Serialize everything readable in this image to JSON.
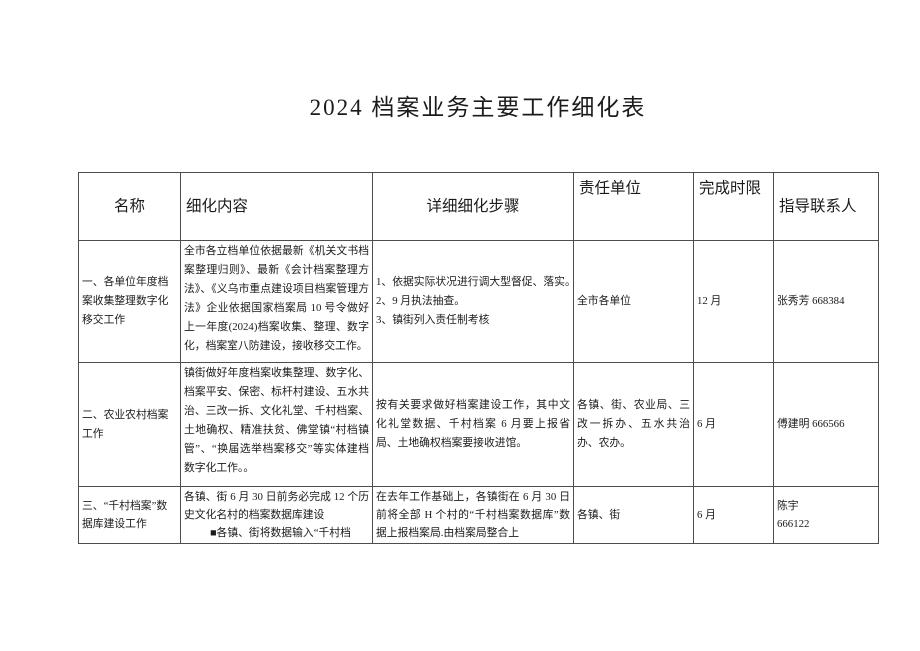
{
  "page": {
    "title": "2024 档案业务主要工作细化表"
  },
  "table": {
    "headers": [
      "名称",
      "细化内容",
      "详细细化步骤",
      "责任单位",
      "完成时限",
      "指导联系人"
    ],
    "rows": [
      {
        "name": "一、各单位年度档案收集整理数字化移交工作",
        "content": "全市各立档单位依据最新《机关文书档案整理归则》、最新《会计档案整理方法》、《义乌市重点建设项目档案管理方法》企业依据国家档案局 10 号令做好上一年度(2024)档案收集、整理、数字化，档案室八防建设，接收移交工作。",
        "steps": [
          "1、依据实际状况进行调大型督促、落实。",
          "2、9 月执法抽查。",
          "3、镇街列入责任制考核"
        ],
        "unit": "全市各单位",
        "deadline": "12 月",
        "contact": "张秀芳 668384"
      },
      {
        "name": "二、农业农村档案工作",
        "content": "镇街做好年度档案收集整理、数字化、档案平安、保密、标杆村建设、五水共治、三改一拆、文化礼堂、千村档案、土地确权、精准扶贫、佛堂镇“村档镇管”、“换届选举档案移交”等实体建档数字化工作。。",
        "steps": [
          "按有关要求做好档案建设工作，其中文化礼堂数据、千村档案 6 月要上报省局、土地确权档案要接收进馆。"
        ],
        "unit": "各镇、街、农业局、三改一拆办、五水共治办、农办。",
        "deadline": "6 月",
        "contact": "傅建明 666566"
      },
      {
        "name": "三、“千村档案”数据库建设工作",
        "content": "各镇、街 6 月 30 日前务必完成 12 个历史文化名村的档案数据库建设",
        "content_bullet": "■各镇、街将数据输入“千村档",
        "steps": [
          "在去年工作基础上，各镇街在 6 月 30 日前将全部 H 个村的“千村档案数据库”数据上报档案局.由档案局整合上"
        ],
        "unit": "各镇、街",
        "deadline": "6 月",
        "contact_lines": [
          "陈宇",
          "666122"
        ]
      }
    ]
  }
}
